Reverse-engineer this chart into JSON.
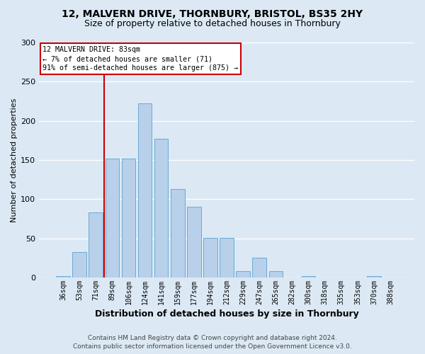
{
  "title1": "12, MALVERN DRIVE, THORNBURY, BRISTOL, BS35 2HY",
  "title2": "Size of property relative to detached houses in Thornbury",
  "xlabel": "Distribution of detached houses by size in Thornbury",
  "ylabel": "Number of detached properties",
  "bar_labels": [
    "36sqm",
    "53sqm",
    "71sqm",
    "89sqm",
    "106sqm",
    "124sqm",
    "141sqm",
    "159sqm",
    "177sqm",
    "194sqm",
    "212sqm",
    "229sqm",
    "247sqm",
    "265sqm",
    "282sqm",
    "300sqm",
    "318sqm",
    "335sqm",
    "353sqm",
    "370sqm",
    "388sqm"
  ],
  "bar_values": [
    2,
    33,
    83,
    152,
    152,
    222,
    177,
    113,
    90,
    51,
    51,
    8,
    25,
    8,
    0,
    2,
    0,
    0,
    0,
    2,
    0
  ],
  "bar_color": "#b8d0ea",
  "bar_edge_color": "#6aaad4",
  "bg_color": "#dce9f5",
  "grid_color": "#ffffff",
  "vline_color": "#cc0000",
  "vline_x_index": 2.5,
  "annotation_line1": "12 MALVERN DRIVE: 83sqm",
  "annotation_line2": "← 7% of detached houses are smaller (71)",
  "annotation_line3": "91% of semi-detached houses are larger (875) →",
  "annotation_box_color": "#ffffff",
  "annotation_box_edge": "#cc0000",
  "footer1": "Contains HM Land Registry data © Crown copyright and database right 2024.",
  "footer2": "Contains public sector information licensed under the Open Government Licence v3.0.",
  "ylim": [
    0,
    300
  ],
  "yticks": [
    0,
    50,
    100,
    150,
    200,
    250,
    300
  ],
  "title1_fontsize": 10,
  "title2_fontsize": 9,
  "ylabel_fontsize": 8,
  "xlabel_fontsize": 9,
  "tick_fontsize": 7,
  "footer_fontsize": 6.5
}
